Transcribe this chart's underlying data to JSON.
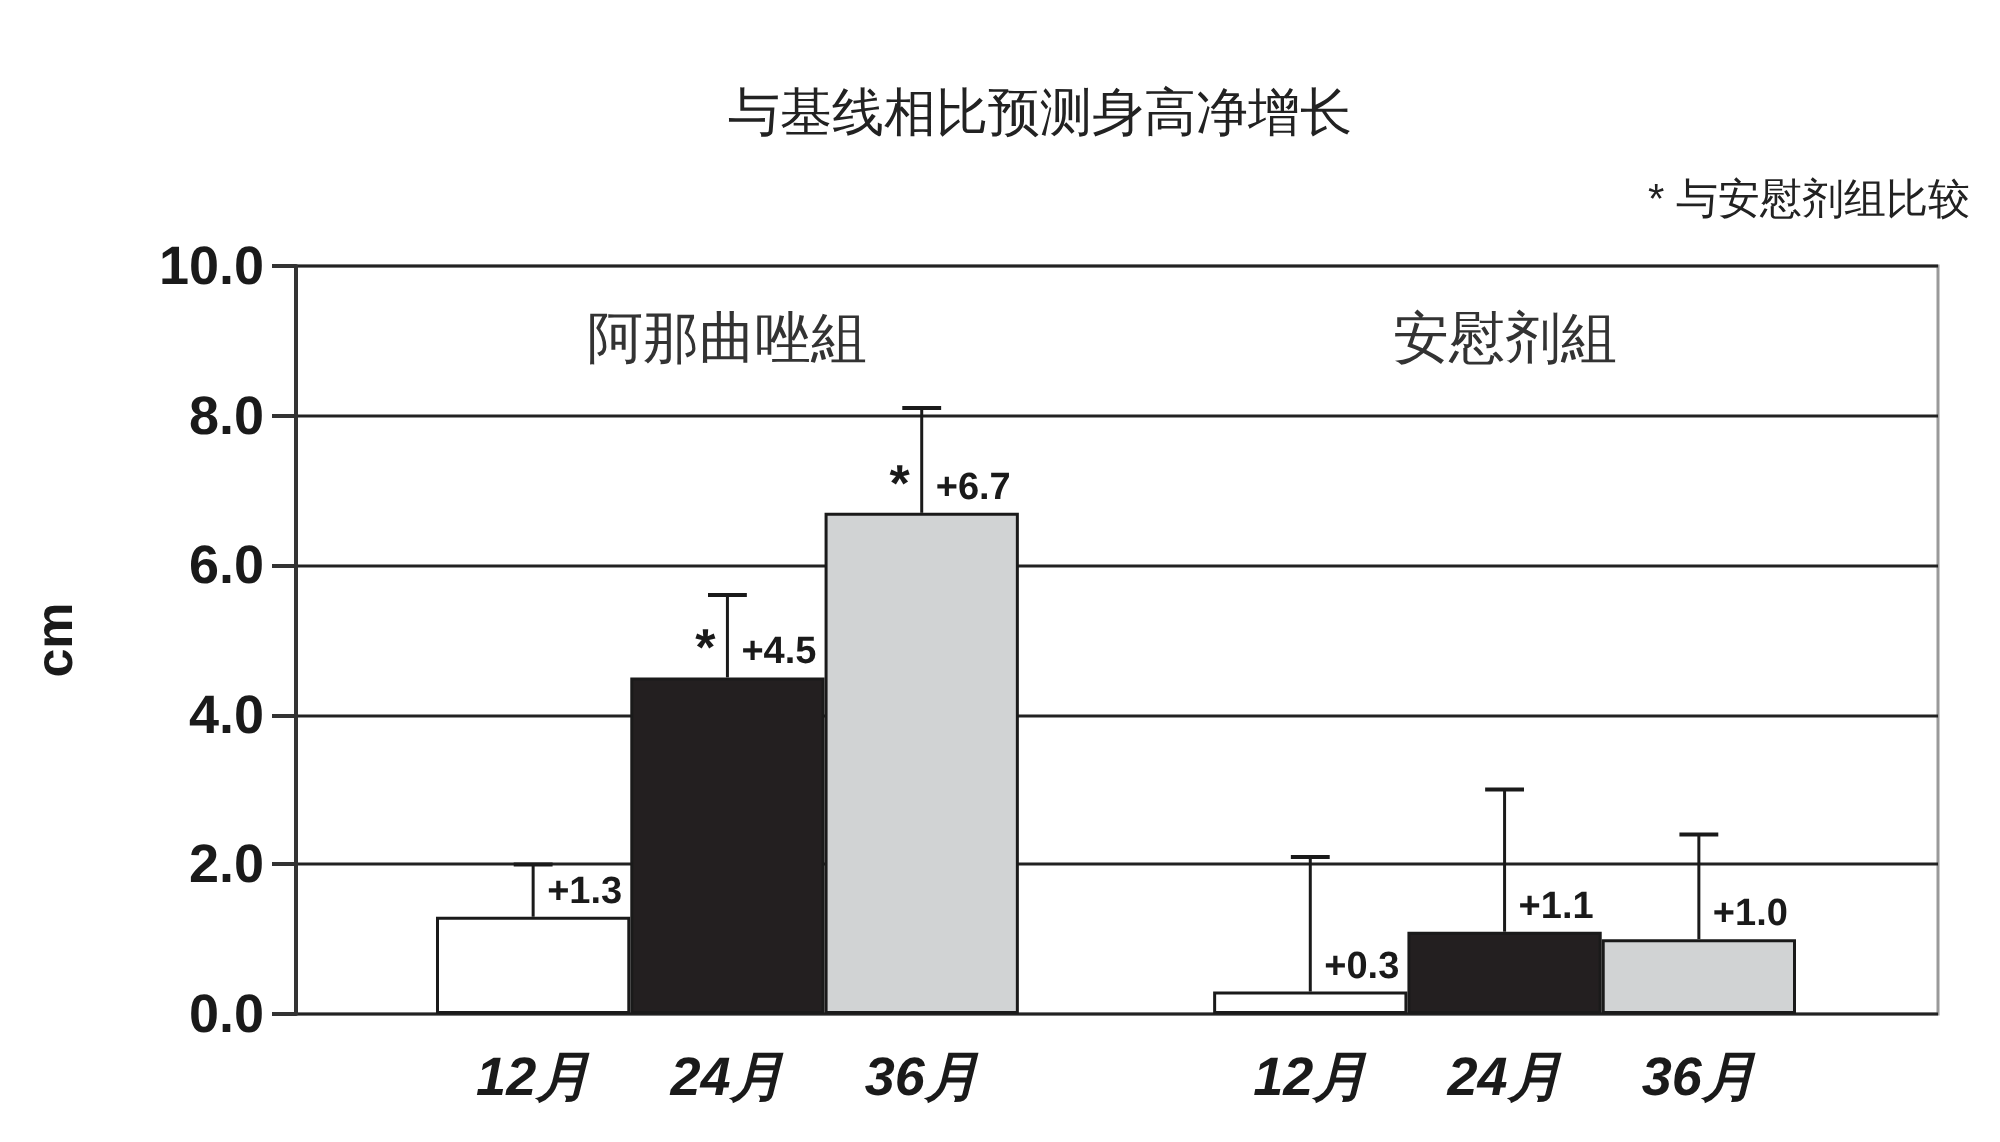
{
  "chart_data": {
    "type": "bar",
    "title": "与基线相比预测身高净增长",
    "ylabel": "cm",
    "categories": [
      "12月",
      "24月",
      "36月",
      null,
      "12月",
      "24月",
      "36月"
    ],
    "values": [
      1.3,
      4.5,
      6.7,
      null,
      0.3,
      1.1,
      1.0
    ],
    "colors": [
      "#ffffff",
      "#231f20",
      "#d1d3d4",
      null,
      "#ffffff",
      "#231f20",
      "#d1d3d4"
    ],
    "errors": [
      [
        1.3,
        2.0
      ],
      [
        4.5,
        5.6
      ],
      [
        6.7,
        8.1
      ],
      null,
      [
        0.3,
        2.1
      ],
      [
        1.1,
        3.0
      ],
      [
        1.0,
        2.4
      ]
    ],
    "value_labels": [
      "+1.3",
      "+4.5",
      "+6.7",
      null,
      "+0.3",
      "+1.1",
      "+1.0"
    ],
    "ylim": [
      0,
      10
    ],
    "yticks": [
      {
        "value": 0,
        "label": "0.0"
      },
      {
        "value": 2,
        "label": "2.0"
      },
      {
        "value": 4,
        "label": "4.0"
      },
      {
        "value": 6,
        "label": "6.0"
      },
      {
        "value": 8,
        "label": "8.0"
      },
      {
        "value": 10,
        "label": "10.0"
      }
    ],
    "grid": "y",
    "annotations": [
      "阿那曲唑組",
      "安慰剂組",
      "* 与安慰剂组比较",
      {
        "text": "*",
        "x": "24月",
        "y": 4.5
      },
      {
        "text": "*",
        "x": "36月",
        "y": 6.7
      }
    ]
  }
}
